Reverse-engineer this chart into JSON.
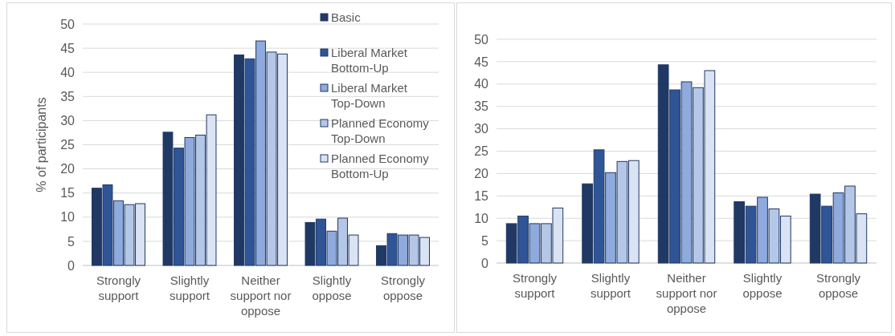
{
  "chart_data": [
    {
      "type": "bar",
      "ylabel": "% of participants",
      "categories": [
        "Strongly support",
        "Slightly support",
        "Neither support nor oppose",
        "Slightly oppose",
        "Strongly oppose"
      ],
      "ylim": [
        0,
        50
      ],
      "yticks": [
        0,
        5,
        10,
        15,
        20,
        25,
        30,
        35,
        40,
        45,
        50
      ],
      "grid": "y",
      "legend": "top right",
      "series": [
        {
          "name": "Basic",
          "color": "#203864",
          "values": [
            16.0,
            27.6,
            43.6,
            8.9,
            4.1
          ]
        },
        {
          "name": "Liberal Market Bottom-Up",
          "color": "#2f5597",
          "values": [
            16.7,
            24.3,
            42.8,
            9.6,
            6.6
          ]
        },
        {
          "name": "Liberal Market Top-Down",
          "color": "#8faadc",
          "values": [
            13.4,
            26.5,
            46.5,
            7.1,
            6.3
          ]
        },
        {
          "name": "Planned Economy Top-Down",
          "color": "#b4c7e7",
          "values": [
            12.6,
            27.0,
            44.2,
            9.8,
            6.3
          ]
        },
        {
          "name": "Planned Economy Bottom-Up",
          "color": "#dae3f3",
          "values": [
            12.8,
            31.2,
            43.8,
            6.3,
            5.8
          ]
        }
      ]
    },
    {
      "type": "bar",
      "categories": [
        "Strongly support",
        "Slightly support",
        "Neither support nor oppose",
        "Slightly oppose",
        "Strongly oppose"
      ],
      "ylim": [
        0,
        50
      ],
      "yticks": [
        0,
        5,
        10,
        15,
        20,
        25,
        30,
        35,
        40,
        45,
        50
      ],
      "grid": "y",
      "series": [
        {
          "color": "#203864",
          "values": [
            8.8,
            17.7,
            44.3,
            13.7,
            15.4
          ]
        },
        {
          "color": "#2f5597",
          "values": [
            10.5,
            25.3,
            38.7,
            12.7,
            12.7
          ]
        },
        {
          "color": "#8faadc",
          "values": [
            8.8,
            20.2,
            40.5,
            14.7,
            15.7
          ]
        },
        {
          "color": "#b4c7e7",
          "values": [
            8.8,
            22.7,
            39.2,
            12.1,
            17.2
          ]
        },
        {
          "color": "#dae3f3",
          "values": [
            12.3,
            22.9,
            43.0,
            10.5,
            11.0
          ]
        }
      ]
    }
  ]
}
